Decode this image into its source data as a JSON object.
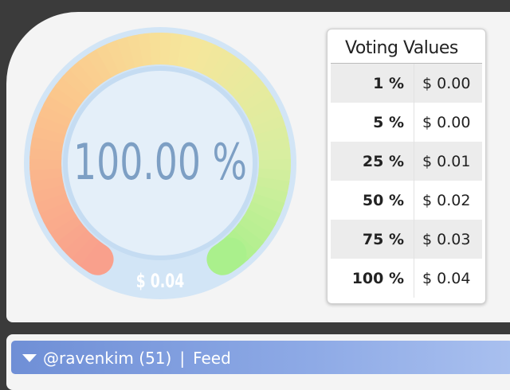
{
  "gauge": {
    "percent": "100.00 %",
    "value": "$ 0.04"
  },
  "table": {
    "title": "Voting Values",
    "rows": [
      [
        "1 %",
        "$ 0.00"
      ],
      [
        "5 %",
        "$ 0.00"
      ],
      [
        "25 %",
        "$ 0.01"
      ],
      [
        "50 %",
        "$ 0.02"
      ],
      [
        "75 %",
        "$ 0.03"
      ],
      [
        "100 %",
        "$ 0.04"
      ]
    ]
  },
  "bar": {
    "account": "@ravenkim (51)",
    "separator": "|",
    "feed": "Feed"
  }
}
